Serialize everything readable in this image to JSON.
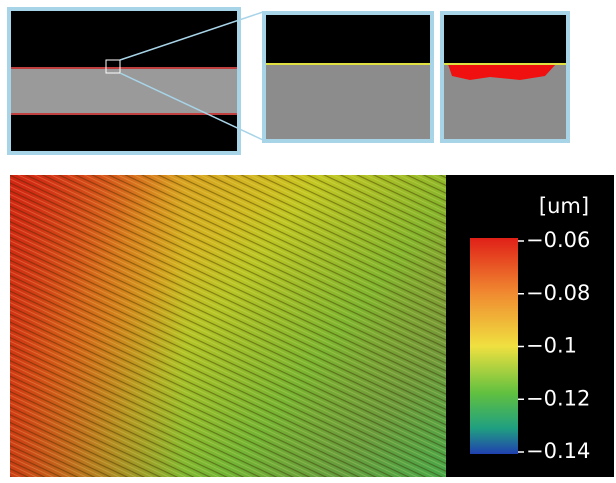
{
  "colorbar": {
    "unit": "[um]",
    "lim": [
      -0.06,
      -0.14
    ],
    "ticks": [
      {
        "value": -0.06,
        "label": "−0.06"
      },
      {
        "value": -0.08,
        "label": "−0.08"
      },
      {
        "value": -0.1,
        "label": "−0.1"
      },
      {
        "value": -0.12,
        "label": "−0.12"
      },
      {
        "value": -0.14,
        "label": "−0.14"
      }
    ]
  }
}
